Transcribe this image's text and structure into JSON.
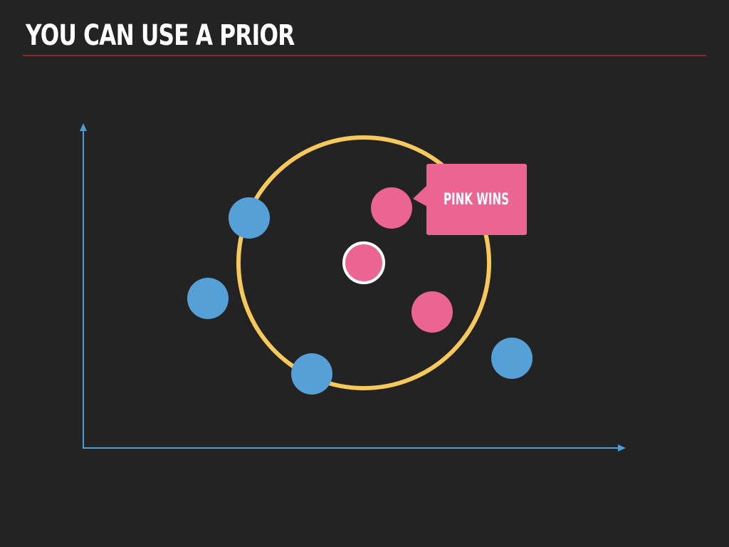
{
  "slide": {
    "title": "YOU CAN USE A PRIOR"
  },
  "callout": {
    "label": "PINK WINS"
  },
  "colors": {
    "background": "#232323",
    "title_rule": "#8e2a2a",
    "axis": "#4a9ed8",
    "blue_point": "#56a0d8",
    "pink_point": "#ec6592",
    "neighborhood_ring": "#f7c95c",
    "query_outline": "#ffffff",
    "callout_text": "#ffffff"
  },
  "diagram": {
    "points": [
      {
        "class": "blue",
        "label": ""
      },
      {
        "class": "blue",
        "label": ""
      },
      {
        "class": "blue",
        "label": ""
      },
      {
        "class": "blue",
        "label": ""
      },
      {
        "class": "pink",
        "label": ""
      },
      {
        "class": "pink",
        "label": ""
      }
    ],
    "query_point": {
      "class": "pink",
      "outlined": true
    },
    "neighborhood": "circle"
  }
}
